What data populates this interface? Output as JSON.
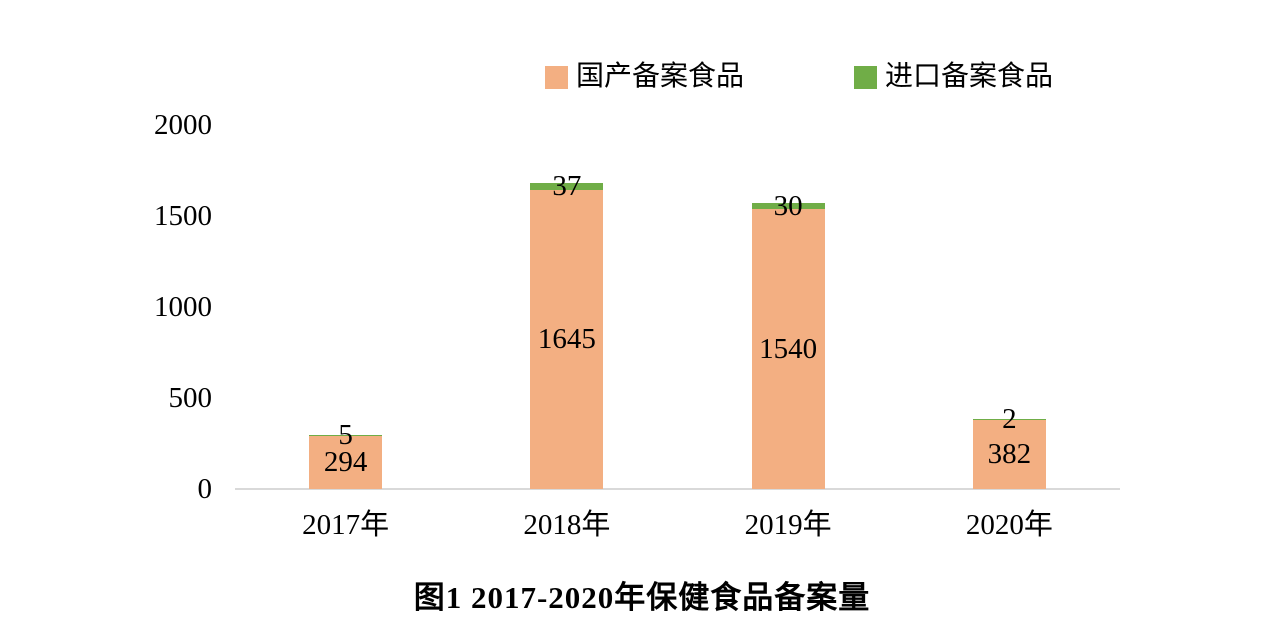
{
  "legend": {
    "items": [
      {
        "label": "国产备案食品",
        "color": "#F3AF82"
      },
      {
        "label": "进口备案食品",
        "color": "#70AD47"
      }
    ]
  },
  "chart_data": {
    "type": "bar",
    "stacked": true,
    "categories": [
      "2017年",
      "2018年",
      "2019年",
      "2020年"
    ],
    "series": [
      {
        "name": "国产备案食品",
        "color": "#F3AF82",
        "values": [
          294,
          1645,
          1540,
          382
        ]
      },
      {
        "name": "进口备案食品",
        "color": "#70AD47",
        "values": [
          5,
          37,
          30,
          2
        ]
      }
    ],
    "title": "图1 2017-2020年保健食品备案量",
    "xlabel": "",
    "ylabel": "",
    "y_ticks": [
      0,
      500,
      1000,
      1500,
      2000
    ],
    "ylim": [
      0,
      2000
    ],
    "grid": false,
    "legend_position": "top",
    "data_labels": "center",
    "axis_line_color": "#D9D9D9",
    "label_color": "#000000"
  }
}
